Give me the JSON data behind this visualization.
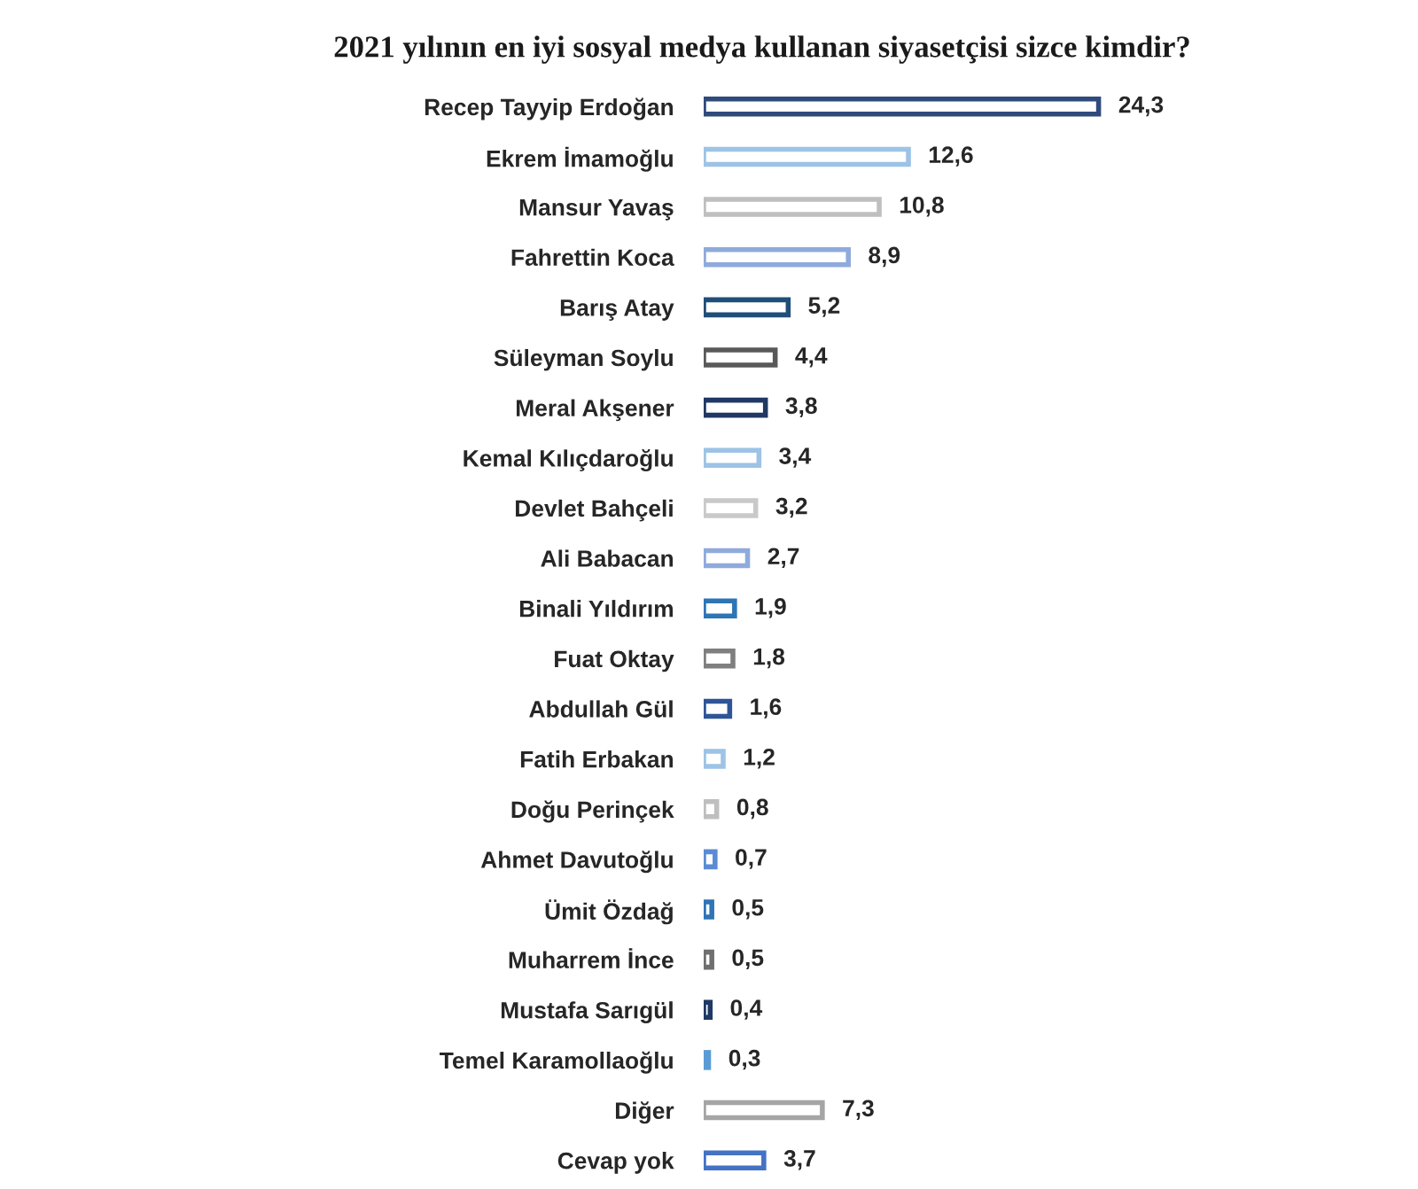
{
  "chart_data": {
    "type": "bar",
    "orientation": "horizontal",
    "title": "2021 yılının en iyi sosyal medya kullanan siyasetçisi sizce kimdir?",
    "categories": [
      "Recep Tayyip Erdoğan",
      "Ekrem İmamoğlu",
      "Mansur Yavaş",
      "Fahrettin Koca",
      "Barış Atay",
      "Süleyman Soylu",
      "Meral Akşener",
      "Kemal Kılıçdaroğlu",
      "Devlet Bahçeli",
      "Ali Babacan",
      "Binali Yıldırım",
      "Fuat Oktay",
      "Abdullah Gül",
      "Fatih Erbakan",
      "Doğu Perinçek",
      "Ahmet Davutoğlu",
      "Ümit Özdağ",
      "Muharrem İnce",
      "Mustafa Sarıgül",
      "Temel Karamollaoğlu",
      "Diğer",
      "Cevap yok"
    ],
    "values": [
      24.3,
      12.6,
      10.8,
      8.9,
      5.2,
      4.4,
      3.8,
      3.4,
      3.2,
      2.7,
      1.9,
      1.8,
      1.6,
      1.2,
      0.8,
      0.7,
      0.5,
      0.5,
      0.4,
      0.3,
      7.3,
      3.7
    ],
    "value_labels": [
      "24,3",
      "12,6",
      "10,8",
      "8,9",
      "5,2",
      "4,4",
      "3,8",
      "3,4",
      "3,2",
      "2,7",
      "1,9",
      "1,8",
      "1,6",
      "1,2",
      "0,8",
      "0,7",
      "0,5",
      "0,5",
      "0,4",
      "0,3",
      "7,3",
      "3,7"
    ],
    "colors": [
      "#2f4b7c",
      "#9dc3e6",
      "#bfbfbf",
      "#8faadc",
      "#1f4e79",
      "#595959",
      "#203864",
      "#9dc3e6",
      "#c9c9c9",
      "#8faadc",
      "#2e75b6",
      "#7f7f7f",
      "#2f5597",
      "#9dc3e6",
      "#bfbfbf",
      "#5b8bd5",
      "#2e75b6",
      "#6f6f6f",
      "#203864",
      "#5b9bd5",
      "#a5a5a5",
      "#4472c4"
    ],
    "grid": false,
    "legend": false,
    "tick_labels": "y"
  }
}
